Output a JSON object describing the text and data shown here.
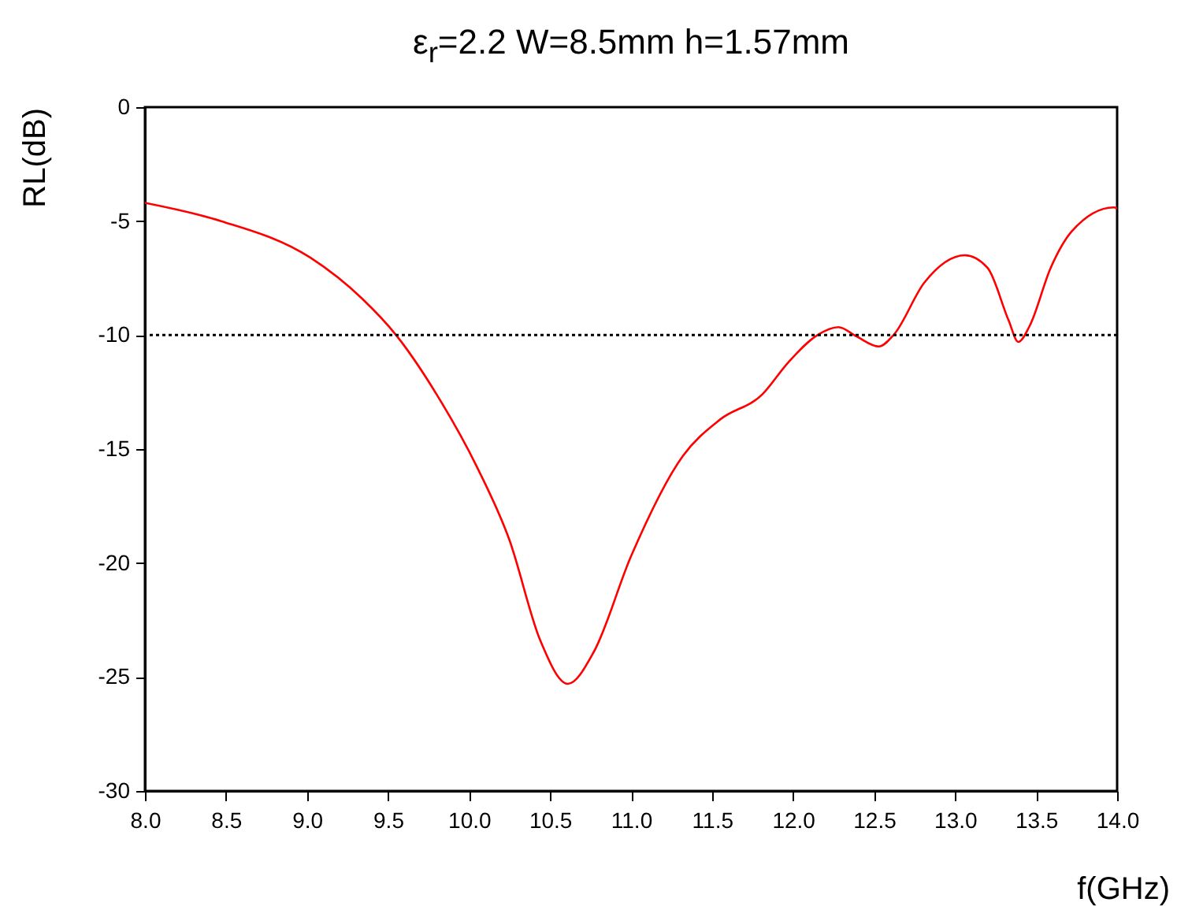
{
  "chart_data": {
    "type": "line",
    "title": "ε$_{r}$=2.2  W=8.5mm  h=1.57mm",
    "xlabel": "f(GHz)",
    "ylabel": "RL(dB)",
    "x": [
      8.0,
      8.47,
      9.02,
      9.34,
      9.55,
      9.8,
      10.05,
      10.25,
      10.44,
      10.61,
      10.77,
      11.0,
      11.32,
      11.55,
      11.81,
      11.97,
      12.15,
      12.28,
      12.39,
      12.53,
      12.62,
      12.81,
      13.06,
      13.2,
      13.33,
      13.39,
      13.46,
      13.59,
      13.72,
      13.98,
      14.0
    ],
    "series": [
      {
        "color": "#ff0000",
        "values": [
          -4.2,
          -5.0,
          -6.6,
          -8.4,
          -10.0,
          -12.6,
          -15.8,
          -19.0,
          -23.4,
          -25.3,
          -23.9,
          -19.7,
          -15.3,
          -13.7,
          -12.6,
          -11.2,
          -10.0,
          -9.65,
          -10.05,
          -10.5,
          -10.0,
          -7.7,
          -6.5,
          -7.05,
          -9.35,
          -10.3,
          -9.6,
          -7.05,
          -5.45,
          -4.4,
          -4.45
        ]
      }
    ],
    "xlim": [
      8,
      14
    ],
    "xticks": [
      {
        "value": 8,
        "label": "8.0"
      },
      8.5,
      {
        "value": 9,
        "label": "9.0"
      },
      9.5,
      {
        "value": 10,
        "label": "10.0"
      },
      10.5,
      {
        "value": 11,
        "label": "11.0"
      },
      11.5,
      {
        "value": 12,
        "label": "12.0"
      },
      12.5,
      {
        "value": 13,
        "label": "13.0"
      },
      13.5,
      {
        "value": 14,
        "label": "14.0"
      }
    ],
    "ylim": [
      -30,
      0
    ],
    "yticks": [
      -30,
      -25,
      -20,
      -15,
      -10,
      -5,
      0
    ],
    "ref_lines": [
      {
        "axis": "y",
        "value": -10,
        "color": "#000000",
        "line_style": "dotted"
      }
    ],
    "grid": false,
    "marker": "none",
    "line_style": "solid"
  }
}
